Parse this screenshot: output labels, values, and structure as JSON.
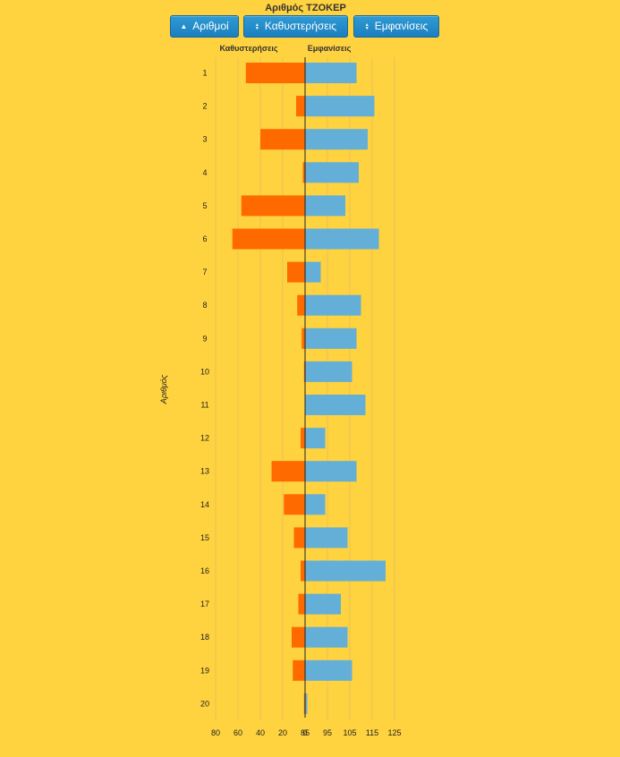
{
  "title": "Αριθμός ΤΖΟΚΕΡ",
  "buttons": {
    "numbers": "Αριθμοί",
    "delays": "Καθυστερήσεις",
    "appearances": "Εμφανίσεις"
  },
  "colors": {
    "delays": "#ff6a00",
    "appearances": "#63afd7",
    "background": "#ffd23f"
  },
  "chart_data": {
    "type": "bar",
    "orientation": "horizontal-diverging",
    "title": "Αριθμός ΤΖΟΚΕΡ",
    "ylabel": "Αριθμός",
    "categories": [
      "1",
      "2",
      "3",
      "4",
      "5",
      "6",
      "7",
      "8",
      "9",
      "10",
      "11",
      "12",
      "13",
      "14",
      "15",
      "16",
      "17",
      "18",
      "19",
      "20"
    ],
    "series": [
      {
        "name": "Καθυστερήσεις",
        "side": "left",
        "values": [
          53,
          8,
          40,
          2,
          57,
          65,
          16,
          7,
          3,
          1,
          0,
          4,
          30,
          19,
          10,
          4,
          6,
          12,
          11,
          1
        ]
      },
      {
        "name": "Εμφανίσεις",
        "side": "right",
        "values": [
          108,
          116,
          113,
          109,
          103,
          118,
          92,
          110,
          108,
          106,
          112,
          94,
          108,
          94,
          104,
          121,
          101,
          104,
          106,
          86
        ]
      }
    ],
    "left_axis": {
      "range": [
        80,
        0
      ],
      "ticks": [
        "80",
        "60",
        "40",
        "20",
        "0"
      ]
    },
    "right_axis": {
      "range": [
        85,
        125
      ],
      "ticks": [
        "85",
        "95",
        "105",
        "115",
        "125"
      ]
    }
  }
}
